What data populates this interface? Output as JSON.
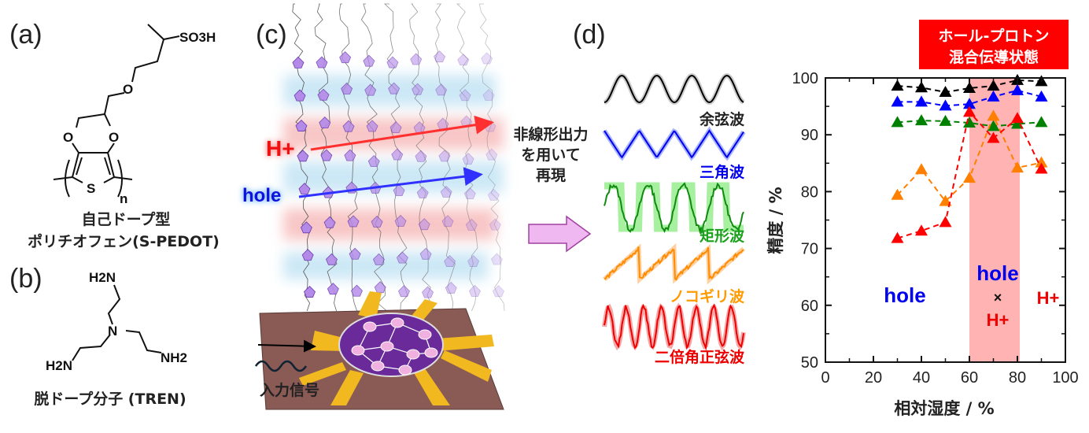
{
  "panels": {
    "a": {
      "label": "(a)",
      "caption_line1": "自己ドープ型",
      "caption_line2": "ポリチオフェン(S-PEDOT)",
      "atoms": {
        "so3h": "SO3H",
        "o_chain": "O",
        "o_left": "O",
        "o_right": "O",
        "s": "S",
        "n_sub": "n"
      }
    },
    "b": {
      "label": "(b)",
      "caption": "脱ドープ分子 (TREN)",
      "atoms": {
        "nh2_top": "H2N",
        "n_center": "N",
        "nh2_left": "H2N",
        "nh2_right": "NH2"
      }
    },
    "c": {
      "label": "(c)",
      "proton_label": "H+",
      "hole_label": "hole",
      "input_label": "入力信号"
    },
    "d": {
      "label": "(d)",
      "arrow_text": [
        "非線形出力",
        "を用いて",
        "再現"
      ],
      "waves": [
        {
          "name": "余弦波",
          "color": "#000000",
          "shadow": "#cccccc"
        },
        {
          "name": "三角波",
          "color": "#0000ee",
          "shadow": "#a8b4ff"
        },
        {
          "name": "矩形波",
          "color": "#128a12",
          "shadow": "#a6f0a0"
        },
        {
          "name": "ノコギリ波",
          "color": "#ff8c00",
          "shadow": "#ffd0a0"
        },
        {
          "name": "二倍角正弦波",
          "color": "#ee0000",
          "shadow": "#f5a8a8"
        }
      ]
    }
  },
  "colors": {
    "proton": "#ff0000",
    "hole": "#0000ff",
    "mixed_region": "#ffb3b3",
    "banner": "#ff0000"
  },
  "chart_data": {
    "type": "scatter",
    "banner": [
      "ホール-プロトン",
      "混合伝導状態"
    ],
    "xlabel": "相対湿度 / %",
    "ylabel": "精度 / %",
    "xlim": [
      0,
      100
    ],
    "ylim": [
      50,
      100
    ],
    "xticks": [
      0,
      20,
      40,
      60,
      80,
      100
    ],
    "yticks": [
      50,
      60,
      70,
      80,
      90,
      100
    ],
    "grid": false,
    "shaded_region_x": [
      60,
      81
    ],
    "x": [
      30,
      40,
      50,
      60,
      70,
      80,
      90
    ],
    "series": [
      {
        "color": "#000000",
        "values": [
          98.6,
          98.3,
          97.5,
          98.2,
          98.6,
          99.6,
          99.4
        ]
      },
      {
        "color": "#0000ff",
        "values": [
          95.8,
          95.8,
          95.1,
          95.4,
          96.7,
          97.8,
          96.7
        ]
      },
      {
        "color": "#008000",
        "values": [
          92.2,
          92.5,
          92.4,
          92.1,
          91.5,
          91.9,
          92.2
        ]
      },
      {
        "color": "#ff8000",
        "values": [
          79.4,
          83.9,
          78.3,
          82.4,
          93.3,
          84.2,
          85.1
        ]
      },
      {
        "color": "#ff0000",
        "values": [
          71.8,
          73.1,
          74.6,
          94.0,
          89.4,
          92.9,
          84.0
        ]
      }
    ],
    "annotations": {
      "hole_low": "hole",
      "hole_mid": "hole",
      "times": "×",
      "proton_mid": "H+",
      "proton_high": "H+"
    }
  }
}
